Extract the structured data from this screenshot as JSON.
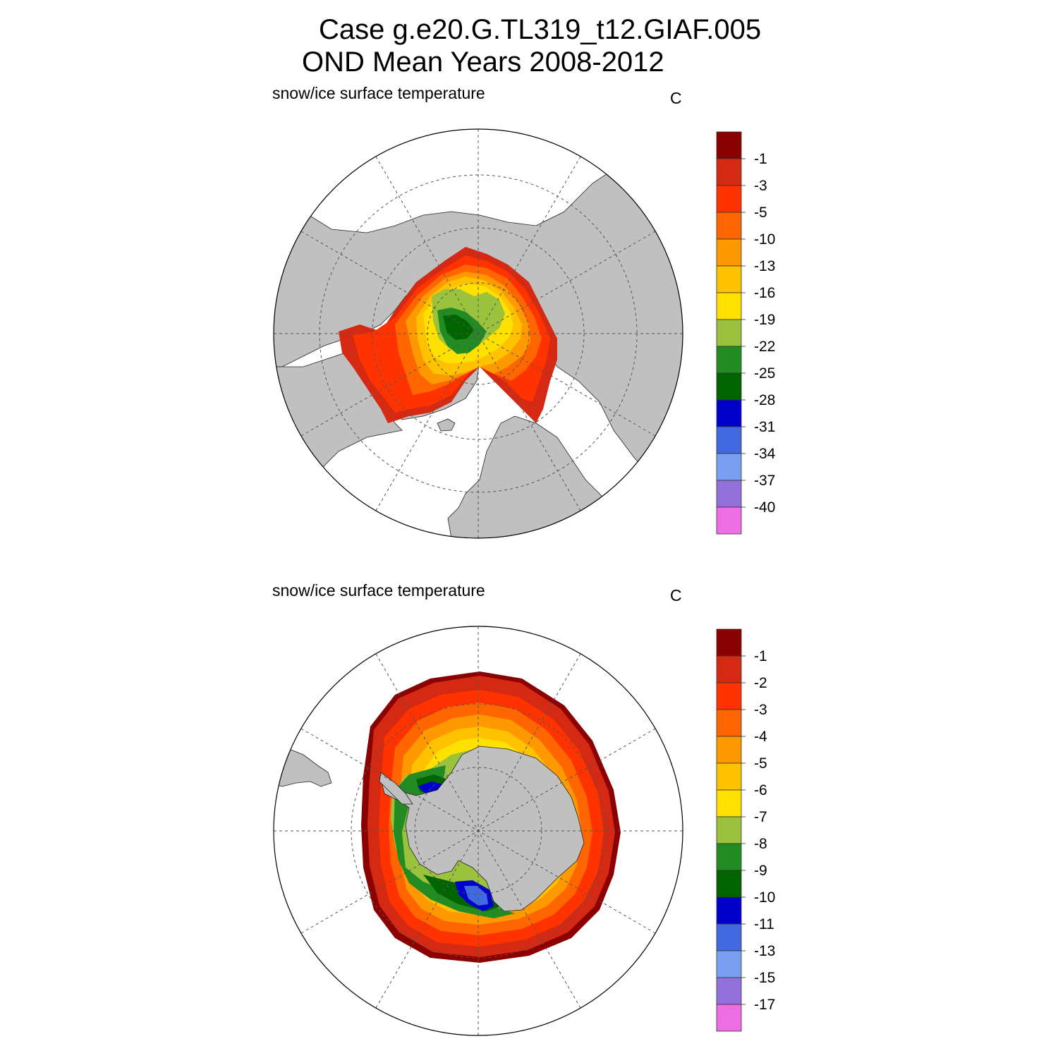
{
  "header": {
    "title_line1": "Case g.e20.G.TL319_t12.GIAF.005",
    "title_line2": "OND Mean   Years 2008-2012"
  },
  "panels": [
    {
      "id": "north",
      "variable_label": "snow/ice surface temperature",
      "units": "C",
      "hemisphere": "Northern",
      "colorbar": {
        "labels": [
          "-1",
          "-3",
          "-5",
          "-10",
          "-13",
          "-16",
          "-19",
          "-22",
          "-25",
          "-28",
          "-31",
          "-34",
          "-37",
          "-40"
        ],
        "colors": [
          "#8b0000",
          "#d42a14",
          "#ff3300",
          "#ff6600",
          "#ff9900",
          "#ffc200",
          "#ffe100",
          "#9bc23c",
          "#228b22",
          "#006400",
          "#0000cd",
          "#4169e1",
          "#789ff0",
          "#9370db",
          "#ee6fe4"
        ]
      }
    },
    {
      "id": "south",
      "variable_label": "snow/ice surface temperature",
      "units": "C",
      "hemisphere": "Southern",
      "colorbar": {
        "labels": [
          "-1",
          "-2",
          "-3",
          "-4",
          "-5",
          "-6",
          "-7",
          "-8",
          "-9",
          "-10",
          "-11",
          "-13",
          "-15",
          "-17"
        ],
        "colors": [
          "#8b0000",
          "#d42a14",
          "#ff3300",
          "#ff6600",
          "#ff9900",
          "#ffc200",
          "#ffe100",
          "#9bc23c",
          "#228b22",
          "#006400",
          "#0000cd",
          "#4169e1",
          "#789ff0",
          "#9370db",
          "#ee6fe4"
        ]
      }
    }
  ],
  "colors": {
    "land": "#c0c0c0",
    "ocean": "#ffffff",
    "gridline": "#555555"
  }
}
